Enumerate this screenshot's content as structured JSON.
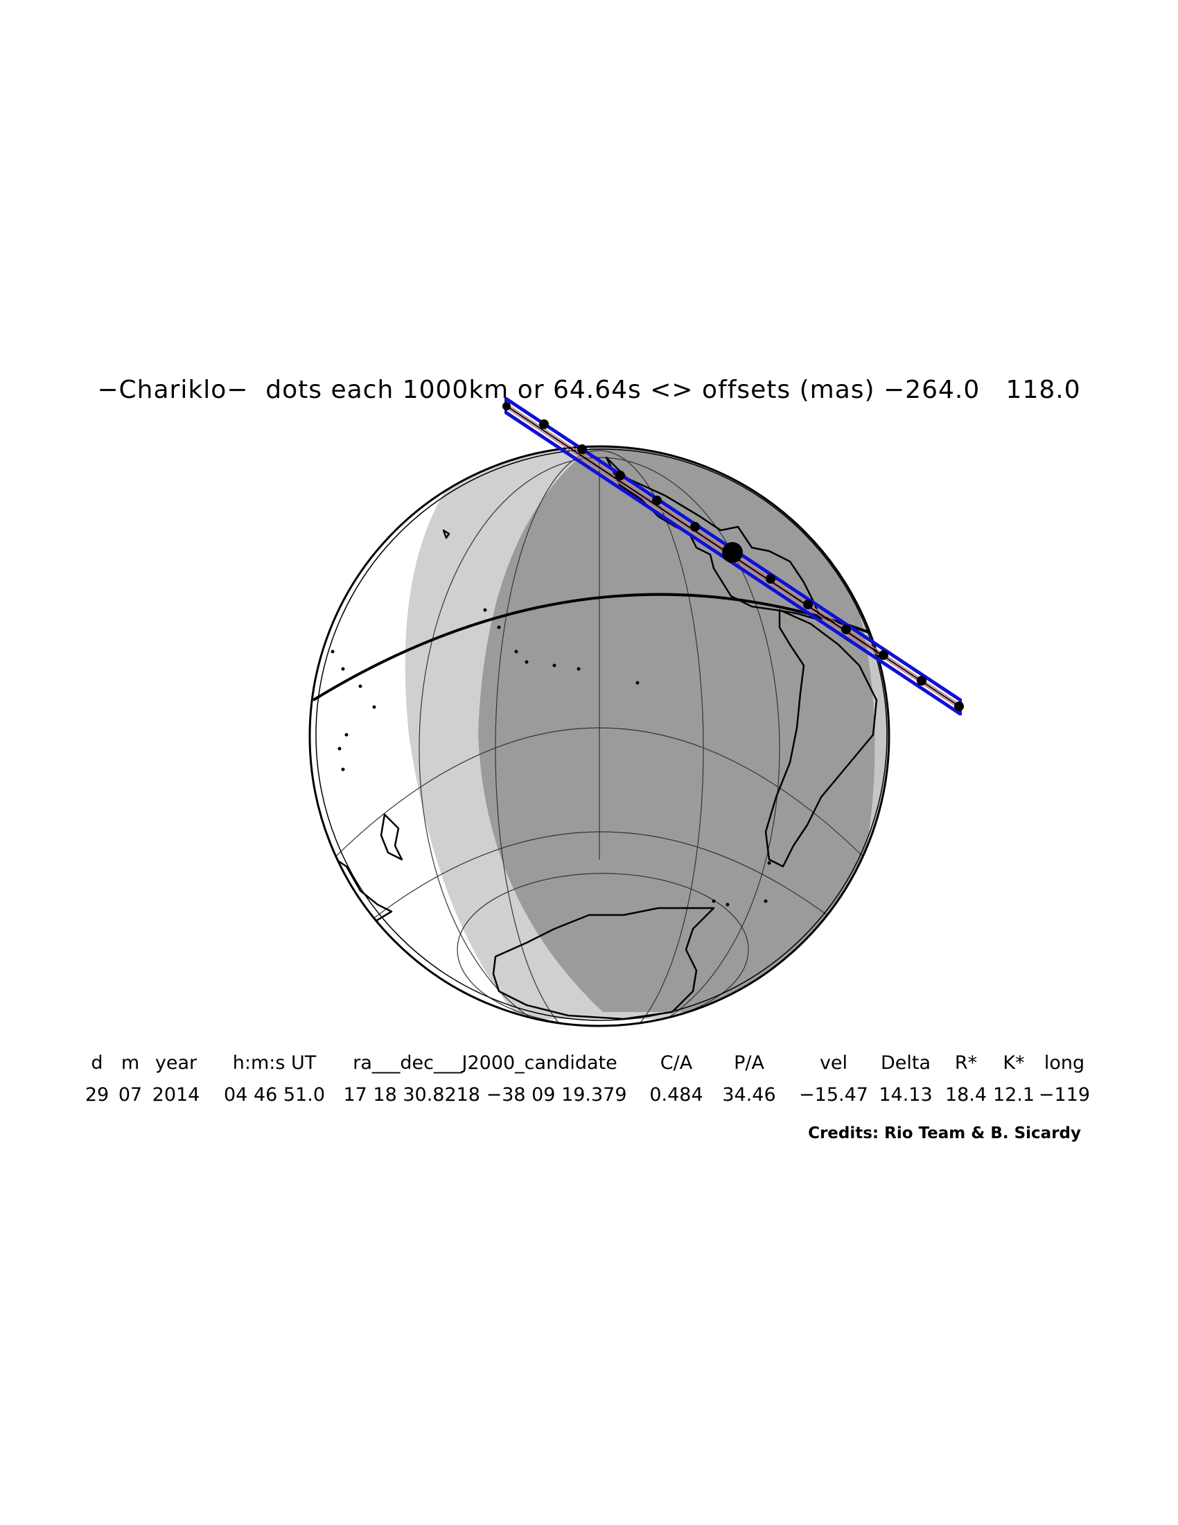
{
  "title": "−Chariklo−  dots each 1000km or 64.64s <> offsets (mas) −264.0   118.0",
  "credits": "Credits: Rio Team & B. Sicardy",
  "colors": {
    "night": "#9b9b9b",
    "twilight": "#d0d0d0",
    "day": "#ffffff",
    "path": "#1010d8",
    "dots": "#000000"
  },
  "table": {
    "headers": {
      "d": "d",
      "m": "m",
      "year": "year",
      "time": "h:m:s UT",
      "radec": "ra___dec___J2000_candidate",
      "ca": "C/A",
      "pa": "P/A",
      "vel": "vel",
      "delta": "Delta",
      "rstar": "R*",
      "kstar": "K*",
      "long": "long"
    },
    "values": {
      "d": "29",
      "m": "07",
      "year": "2014",
      "time": "04 46 51.0",
      "radec": "17 18 30.8218 −38 09 19.379",
      "ca": "0.484",
      "pa": "34.46",
      "vel": "−15.47",
      "delta": "14.13",
      "rstar": "18.4",
      "kstar": "12.1",
      "long": "−119"
    }
  }
}
